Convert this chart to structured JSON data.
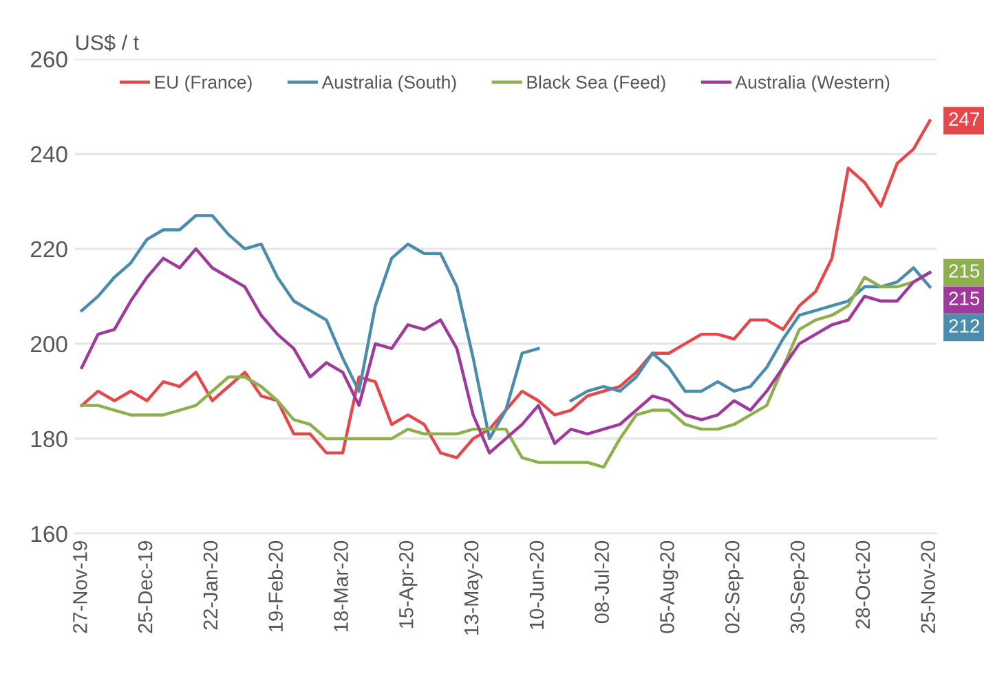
{
  "chart_data": {
    "type": "line",
    "ylabel": "US$ / t",
    "x": [
      "2019-11-27",
      "2019-12-04",
      "2019-12-11",
      "2019-12-18",
      "2019-12-25",
      "2020-01-01",
      "2020-01-08",
      "2020-01-15",
      "2020-01-22",
      "2020-01-29",
      "2020-02-05",
      "2020-02-12",
      "2020-02-19",
      "2020-02-26",
      "2020-03-04",
      "2020-03-11",
      "2020-03-18",
      "2020-03-25",
      "2020-04-01",
      "2020-04-08",
      "2020-04-15",
      "2020-04-22",
      "2020-04-29",
      "2020-05-06",
      "2020-05-13",
      "2020-05-20",
      "2020-05-27",
      "2020-06-03",
      "2020-06-10",
      "2020-06-17",
      "2020-06-24",
      "2020-07-01",
      "2020-07-08",
      "2020-07-15",
      "2020-07-22",
      "2020-07-29",
      "2020-08-05",
      "2020-08-12",
      "2020-08-19",
      "2020-08-26",
      "2020-09-02",
      "2020-09-09",
      "2020-09-16",
      "2020-09-23",
      "2020-09-30",
      "2020-10-07",
      "2020-10-14",
      "2020-10-21",
      "2020-10-28",
      "2020-11-04",
      "2020-11-11",
      "2020-11-18",
      "2020-11-25"
    ],
    "series": [
      {
        "name": "EU (France)",
        "color": "#e5484b",
        "values": [
          187,
          190,
          188,
          190,
          188,
          192,
          191,
          194,
          188,
          191,
          194,
          189,
          188,
          181,
          181,
          177,
          177,
          193,
          192,
          183,
          185,
          183,
          177,
          176,
          180,
          182,
          186,
          190,
          188,
          185,
          186,
          189,
          190,
          191,
          194,
          198,
          198,
          200,
          202,
          202,
          201,
          205,
          205,
          203,
          208,
          211,
          218,
          237,
          234,
          229,
          238,
          241,
          247
        ],
        "value_labels": [
          null,
          null,
          null,
          null,
          null,
          null,
          null,
          null,
          null,
          null,
          null,
          null,
          null,
          null,
          null,
          null,
          null,
          null,
          null,
          null,
          null,
          null,
          null,
          null,
          null,
          null,
          null,
          null,
          null,
          null,
          null,
          null,
          null,
          null,
          null,
          null,
          null,
          null,
          null,
          null,
          null,
          null,
          null,
          null,
          null,
          null,
          null,
          null,
          null,
          null,
          null,
          null,
          "247"
        ]
      },
      {
        "name": "Australia (South)",
        "color": "#4a8cac",
        "values": [
          207,
          210,
          214,
          217,
          222,
          224,
          224,
          227,
          227,
          223,
          220,
          221,
          214,
          209,
          207,
          205,
          197,
          190,
          208,
          218,
          221,
          219,
          219,
          212,
          197,
          180,
          186,
          198,
          199,
          null,
          188,
          190,
          191,
          190,
          193,
          198,
          195,
          190,
          190,
          192,
          190,
          191,
          195,
          201,
          206,
          207,
          208,
          209,
          212,
          212,
          213,
          216,
          212
        ],
        "value_labels": [
          null,
          null,
          null,
          null,
          null,
          null,
          null,
          null,
          null,
          null,
          null,
          null,
          null,
          null,
          null,
          null,
          null,
          null,
          null,
          null,
          null,
          null,
          null,
          null,
          null,
          null,
          null,
          null,
          null,
          null,
          null,
          null,
          null,
          null,
          null,
          null,
          null,
          null,
          null,
          null,
          null,
          null,
          null,
          null,
          null,
          null,
          null,
          null,
          null,
          null,
          null,
          null,
          "212"
        ]
      },
      {
        "name": "Black Sea (Feed)",
        "color": "#8db04c",
        "values": [
          187,
          187,
          186,
          185,
          185,
          185,
          186,
          187,
          190,
          193,
          193,
          191,
          188,
          184,
          183,
          180,
          180,
          180,
          180,
          180,
          182,
          181,
          181,
          181,
          182,
          182,
          182,
          176,
          175,
          175,
          175,
          175,
          174,
          180,
          185,
          186,
          186,
          183,
          182,
          182,
          183,
          185,
          187,
          195,
          203,
          205,
          206,
          208,
          214,
          212,
          212,
          213,
          215
        ],
        "value_labels": [
          null,
          null,
          null,
          null,
          null,
          null,
          null,
          null,
          null,
          null,
          null,
          null,
          null,
          null,
          null,
          null,
          null,
          null,
          null,
          null,
          null,
          null,
          null,
          null,
          null,
          null,
          null,
          null,
          null,
          null,
          null,
          null,
          null,
          null,
          null,
          null,
          null,
          null,
          null,
          null,
          null,
          null,
          null,
          null,
          null,
          null,
          null,
          null,
          null,
          null,
          null,
          null,
          "215"
        ]
      },
      {
        "name": "Australia (Western)",
        "color": "#a0399c",
        "values": [
          195,
          202,
          203,
          209,
          214,
          218,
          216,
          220,
          216,
          214,
          212,
          206,
          202,
          199,
          193,
          196,
          194,
          187,
          200,
          199,
          204,
          203,
          205,
          199,
          185,
          177,
          180,
          183,
          187,
          179,
          182,
          181,
          182,
          183,
          186,
          189,
          188,
          185,
          184,
          185,
          188,
          186,
          190,
          195,
          200,
          202,
          204,
          205,
          210,
          209,
          209,
          213,
          215
        ],
        "value_labels": [
          null,
          null,
          null,
          null,
          null,
          null,
          null,
          null,
          null,
          null,
          null,
          null,
          null,
          null,
          null,
          null,
          null,
          null,
          null,
          null,
          null,
          null,
          null,
          null,
          null,
          null,
          null,
          null,
          null,
          null,
          null,
          null,
          null,
          null,
          null,
          null,
          null,
          null,
          null,
          null,
          null,
          null,
          null,
          null,
          null,
          null,
          null,
          null,
          null,
          null,
          null,
          null,
          "215"
        ]
      }
    ],
    "xlim": [
      "2019-11-24",
      "2020-11-28"
    ],
    "xticks": [
      {
        "value": "2019-11-27",
        "label": "27-Nov-19"
      },
      {
        "value": "2019-12-25",
        "label": "25-Dec-19"
      },
      {
        "value": "2020-01-22",
        "label": "22-Jan-20"
      },
      {
        "value": "2020-02-19",
        "label": "19-Feb-20"
      },
      {
        "value": "2020-03-18",
        "label": "18-Mar-20"
      },
      {
        "value": "2020-04-15",
        "label": "15-Apr-20"
      },
      {
        "value": "2020-05-13",
        "label": "13-May-20"
      },
      {
        "value": "2020-06-10",
        "label": "10-Jun-20"
      },
      {
        "value": "2020-07-08",
        "label": "08-Jul-20"
      },
      {
        "value": "2020-08-05",
        "label": "05-Aug-20"
      },
      {
        "value": "2020-09-02",
        "label": "02-Sep-20"
      },
      {
        "value": "2020-09-30",
        "label": "30-Sep-20"
      },
      {
        "value": "2020-10-28",
        "label": "28-Oct-20"
      },
      {
        "value": "2020-11-25",
        "label": "25-Nov-20"
      }
    ],
    "ylim": [
      160,
      260
    ],
    "yticks": [
      160,
      180,
      200,
      220,
      240,
      260
    ],
    "grid": "y",
    "legend": "top",
    "line_style": "solid",
    "marker": "none"
  }
}
